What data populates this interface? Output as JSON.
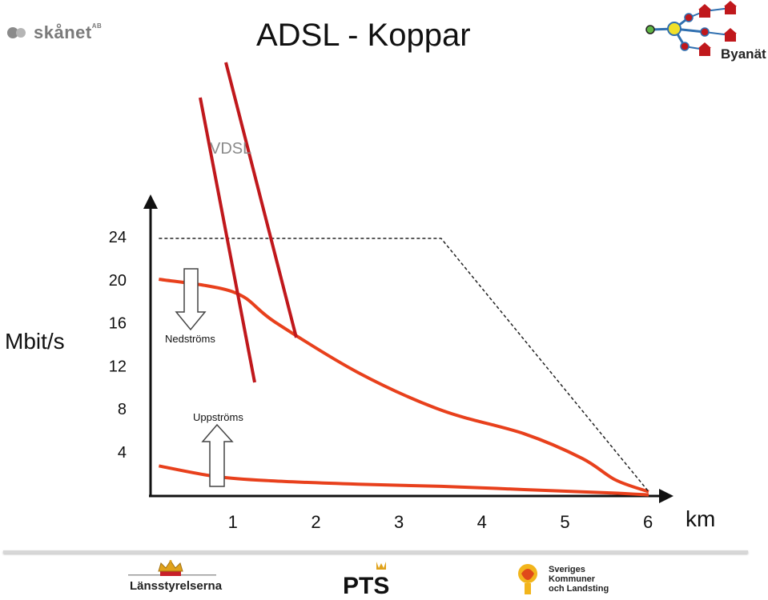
{
  "header": {
    "title": "ADSL - Koppar",
    "logo_left_text": "skånet",
    "logo_left_suffix": "AB",
    "logo_right_text": "Byanät"
  },
  "footer": {
    "logo1_text": "Länsstyrelserna",
    "logo2_text": "PTS",
    "logo3_text": "Sveriges Kommuner och Landsting"
  },
  "chart_data": {
    "type": "line",
    "ylabel": "Mbit/s",
    "xlabel": "km",
    "x_ticks": [
      "1",
      "2",
      "3",
      "4",
      "5",
      "6"
    ],
    "y_ticks": [
      "4",
      "8",
      "12",
      "16",
      "20",
      "24"
    ],
    "xlim": [
      0,
      6
    ],
    "ylim": [
      0,
      24
    ],
    "annotations": {
      "vdsl": "VDSL",
      "downstream": "Nedströms",
      "upstream": "Uppströms"
    },
    "series": [
      {
        "name": "Nedströms",
        "color": "#e8401c",
        "x": [
          0.1,
          1.0,
          1.5,
          2.5,
          3.5,
          4.5,
          5.2,
          5.6,
          6.0
        ],
        "y": [
          20.2,
          19.0,
          16.2,
          11.5,
          8.0,
          5.8,
          3.5,
          1.5,
          0.4
        ]
      },
      {
        "name": "Uppströms",
        "color": "#e8401c",
        "x": [
          0.1,
          0.8,
          1.5,
          2.5,
          3.5,
          4.5,
          5.5,
          6.0
        ],
        "y": [
          2.8,
          1.8,
          1.4,
          1.1,
          0.9,
          0.6,
          0.3,
          0.1
        ]
      },
      {
        "name": "",
        "color": "#222222",
        "style": "dashed",
        "x": [
          0.1,
          3.5,
          6.0
        ],
        "y": [
          24,
          24,
          0.4
        ]
      }
    ],
    "vdsl_lines_color": "#c0181c"
  }
}
